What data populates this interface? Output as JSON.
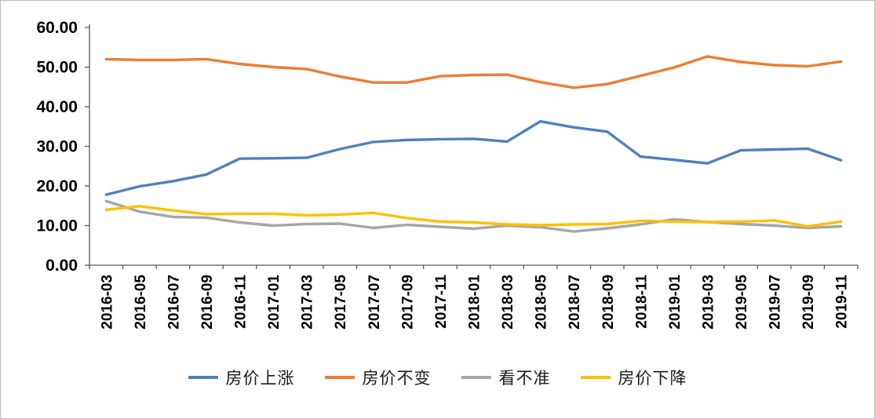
{
  "chart_data": {
    "type": "line",
    "title": "",
    "xlabel": "",
    "ylabel": "",
    "ylim": [
      0,
      60
    ],
    "grid": false,
    "legend_position": "bottom",
    "axis_color": "#595959",
    "label_color": "#000000",
    "categories": [
      "2016-03",
      "2016-05",
      "2016-07",
      "2016-09",
      "2016-11",
      "2017-01",
      "2017-03",
      "2017-05",
      "2017-07",
      "2017-09",
      "2017-11",
      "2018-01",
      "2018-03",
      "2018-05",
      "2018-07",
      "2018-09",
      "2018-11",
      "2019-01",
      "2019-03",
      "2019-05",
      "2019-07",
      "2019-09",
      "2019-11"
    ],
    "y_ticks": [
      {
        "value": 0,
        "label": "0.00"
      },
      {
        "value": 10,
        "label": "10.00"
      },
      {
        "value": 20,
        "label": "20.00"
      },
      {
        "value": 30,
        "label": "30.00"
      },
      {
        "value": 40,
        "label": "40.00"
      },
      {
        "value": 50,
        "label": "50.00"
      },
      {
        "value": 60,
        "label": "60.00"
      }
    ],
    "series": [
      {
        "name": "房价上涨",
        "color": "#4E81BD",
        "values": [
          17.8,
          19.9,
          21.2,
          22.9,
          26.9,
          27.0,
          27.1,
          29.3,
          31.1,
          31.6,
          31.8,
          31.9,
          31.2,
          36.3,
          34.8,
          33.7,
          27.4,
          26.6,
          25.7,
          29.0,
          29.2,
          29.4,
          26.5
        ]
      },
      {
        "name": "房价不变",
        "color": "#ED7D31",
        "values": [
          52.0,
          51.8,
          51.8,
          52.0,
          50.8,
          50.0,
          49.5,
          47.6,
          46.1,
          46.1,
          47.7,
          48.0,
          48.1,
          46.2,
          44.8,
          45.7,
          47.8,
          49.9,
          52.7,
          51.3,
          50.5,
          50.2,
          51.4
        ]
      },
      {
        "name": "看不准",
        "color": "#A6A6A6",
        "values": [
          16.2,
          13.5,
          12.2,
          12.0,
          10.8,
          10.0,
          10.4,
          10.5,
          9.4,
          10.2,
          9.7,
          9.2,
          10.0,
          9.6,
          8.5,
          9.3,
          10.3,
          11.6,
          10.9,
          10.4,
          10.0,
          9.4,
          9.8
        ]
      },
      {
        "name": "房价下降",
        "color": "#FFC000",
        "values": [
          14.0,
          14.9,
          13.8,
          12.9,
          13.0,
          13.0,
          12.6,
          12.8,
          13.2,
          11.9,
          11.0,
          10.8,
          10.3,
          10.1,
          10.3,
          10.4,
          11.2,
          11.0,
          10.9,
          11.0,
          11.3,
          9.8,
          11.0
        ]
      }
    ]
  }
}
